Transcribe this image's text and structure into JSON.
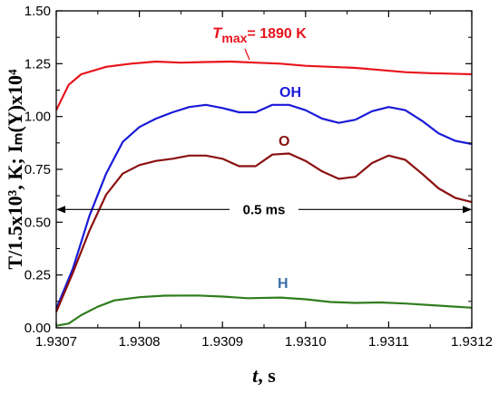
{
  "chart_data": {
    "type": "line",
    "xlabel": {
      "var": "t",
      "unit": ", s"
    },
    "ylabel": "T/1.5x10³, K; Iₘ(Y)x10⁴",
    "xlim": [
      1.9307,
      1.9312
    ],
    "ylim": [
      0.0,
      1.5
    ],
    "x_ticks": [
      "1.9307",
      "1.9308",
      "1.9309",
      "1.9310",
      "1.9311",
      "1.9312"
    ],
    "y_ticks": [
      "0.00",
      "0.25",
      "0.50",
      "0.75",
      "1.00",
      "1.25",
      "1.50"
    ],
    "grid": false,
    "legend": "none",
    "series": [
      {
        "name": "T",
        "color": "#e8141c",
        "label": {
          "main": "T",
          "sub": "max",
          "rest": "= 1890 K"
        },
        "points": [
          [
            1.9307,
            1.03
          ],
          [
            1.930715,
            1.15
          ],
          [
            1.93073,
            1.2
          ],
          [
            1.93076,
            1.235
          ],
          [
            1.93079,
            1.25
          ],
          [
            1.93082,
            1.26
          ],
          [
            1.93085,
            1.255
          ],
          [
            1.93088,
            1.258
          ],
          [
            1.93091,
            1.26
          ],
          [
            1.93094,
            1.255
          ],
          [
            1.93097,
            1.25
          ],
          [
            1.931,
            1.24
          ],
          [
            1.93103,
            1.235
          ],
          [
            1.93106,
            1.23
          ],
          [
            1.93109,
            1.22
          ],
          [
            1.93112,
            1.21
          ],
          [
            1.93115,
            1.205
          ],
          [
            1.9312,
            1.2
          ]
        ]
      },
      {
        "name": "OH",
        "color": "#1a1ad8",
        "label": "OH",
        "points": [
          [
            1.9307,
            0.09
          ],
          [
            1.93072,
            0.28
          ],
          [
            1.93074,
            0.53
          ],
          [
            1.93076,
            0.73
          ],
          [
            1.93078,
            0.88
          ],
          [
            1.9308,
            0.95
          ],
          [
            1.93082,
            0.99
          ],
          [
            1.93084,
            1.02
          ],
          [
            1.93086,
            1.045
          ],
          [
            1.93088,
            1.055
          ],
          [
            1.9309,
            1.04
          ],
          [
            1.93092,
            1.02
          ],
          [
            1.93094,
            1.02
          ],
          [
            1.93096,
            1.055
          ],
          [
            1.93098,
            1.055
          ],
          [
            1.931,
            1.03
          ],
          [
            1.93102,
            0.99
          ],
          [
            1.93104,
            0.97
          ],
          [
            1.93106,
            0.985
          ],
          [
            1.93108,
            1.025
          ],
          [
            1.9311,
            1.045
          ],
          [
            1.93112,
            1.03
          ],
          [
            1.93114,
            0.98
          ],
          [
            1.93116,
            0.92
          ],
          [
            1.93118,
            0.885
          ],
          [
            1.9312,
            0.87
          ]
        ]
      },
      {
        "name": "O",
        "color": "#8b1010",
        "label": "O",
        "points": [
          [
            1.9307,
            0.075
          ],
          [
            1.93072,
            0.26
          ],
          [
            1.93074,
            0.46
          ],
          [
            1.93076,
            0.63
          ],
          [
            1.93078,
            0.73
          ],
          [
            1.9308,
            0.77
          ],
          [
            1.93082,
            0.79
          ],
          [
            1.93084,
            0.8
          ],
          [
            1.93086,
            0.815
          ],
          [
            1.93088,
            0.815
          ],
          [
            1.9309,
            0.8
          ],
          [
            1.93092,
            0.765
          ],
          [
            1.93094,
            0.765
          ],
          [
            1.93096,
            0.82
          ],
          [
            1.93098,
            0.825
          ],
          [
            1.931,
            0.79
          ],
          [
            1.93102,
            0.74
          ],
          [
            1.93104,
            0.705
          ],
          [
            1.93106,
            0.715
          ],
          [
            1.93108,
            0.78
          ],
          [
            1.9311,
            0.815
          ],
          [
            1.93112,
            0.795
          ],
          [
            1.93114,
            0.73
          ],
          [
            1.93116,
            0.66
          ],
          [
            1.93118,
            0.615
          ],
          [
            1.9312,
            0.595
          ]
        ]
      },
      {
        "name": "H",
        "color": "#2f7d1e",
        "label": "H",
        "points": [
          [
            1.9307,
            0.01
          ],
          [
            1.930715,
            0.02
          ],
          [
            1.93073,
            0.06
          ],
          [
            1.93075,
            0.1
          ],
          [
            1.93077,
            0.13
          ],
          [
            1.9308,
            0.145
          ],
          [
            1.93083,
            0.152
          ],
          [
            1.93087,
            0.153
          ],
          [
            1.9309,
            0.148
          ],
          [
            1.93093,
            0.14
          ],
          [
            1.93097,
            0.143
          ],
          [
            1.931,
            0.135
          ],
          [
            1.93103,
            0.122
          ],
          [
            1.93106,
            0.118
          ],
          [
            1.93109,
            0.12
          ],
          [
            1.93112,
            0.115
          ],
          [
            1.93116,
            0.105
          ],
          [
            1.9312,
            0.095
          ]
        ]
      }
    ],
    "annotations": [
      {
        "name": "duration-arrow",
        "text": "0.5 ms",
        "x_from": 1.9307,
        "x_to": 1.9312,
        "y": 0.56,
        "text_x": 1.93095
      }
    ]
  }
}
